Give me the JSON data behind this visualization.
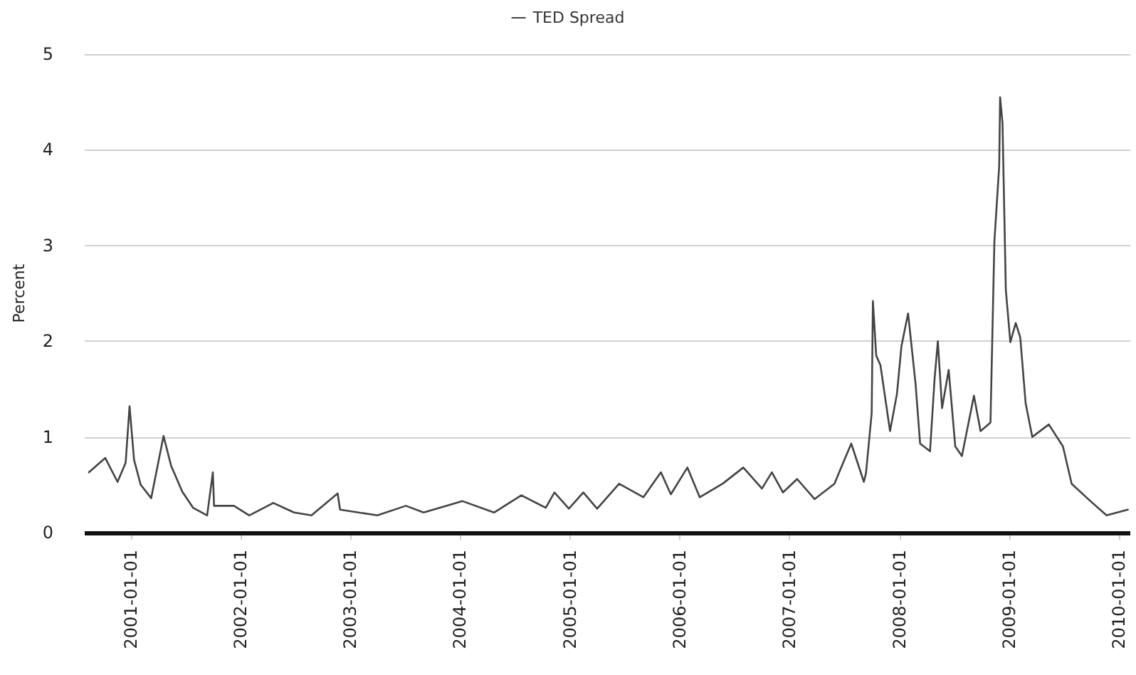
{
  "chart_data": {
    "type": "line",
    "ylabel": "Percent",
    "legend": "top",
    "grid": "y",
    "marker": "none",
    "line_style": "solid",
    "xlim": [
      "2000-08-01",
      "2010-02-07"
    ],
    "xticks": [
      "2001-01-01",
      "2002-01-01",
      "2003-01-01",
      "2004-01-01",
      "2005-01-01",
      "2006-01-01",
      "2007-01-01",
      "2008-01-01",
      "2009-01-01",
      "2010-01-01"
    ],
    "ylim": [
      0,
      5
    ],
    "yticks": [
      0,
      1,
      2,
      3,
      4,
      5
    ],
    "x": [
      "2000-08-15",
      "2000-10-08",
      "2000-11-18",
      "2000-12-15",
      "2000-12-28",
      "2001-01-12",
      "2001-02-03",
      "2001-03-10",
      "2001-04-20",
      "2001-05-15",
      "2001-06-21",
      "2001-07-27",
      "2001-09-12",
      "2001-10-01",
      "2001-10-05",
      "2001-12-10",
      "2002-01-30",
      "2002-04-20",
      "2002-06-28",
      "2002-08-25",
      "2002-11-20",
      "2002-11-28",
      "2003-04-01",
      "2003-07-05",
      "2003-09-02",
      "2003-12-20",
      "2004-01-08",
      "2004-04-23",
      "2004-07-23",
      "2004-10-12",
      "2004-11-10",
      "2004-12-28",
      "2005-02-14",
      "2005-04-01",
      "2005-06-13",
      "2005-09-02",
      "2005-10-30",
      "2005-12-02",
      "2006-01-26",
      "2006-03-08",
      "2006-05-23",
      "2006-07-31",
      "2006-10-01",
      "2006-11-03",
      "2006-12-10",
      "2007-01-26",
      "2007-03-25",
      "2007-05-30",
      "2007-06-28",
      "2007-07-25",
      "2007-09-05",
      "2007-09-12",
      "2007-10-01",
      "2007-10-05",
      "2007-10-16",
      "2007-10-30",
      "2007-12-01",
      "2007-12-24",
      "2008-01-08",
      "2008-01-30",
      "2008-02-24",
      "2008-03-10",
      "2008-04-12",
      "2008-04-27",
      "2008-05-08",
      "2008-05-22",
      "2008-06-13",
      "2008-07-05",
      "2008-07-27",
      "2008-09-05",
      "2008-09-27",
      "2008-10-30",
      "2008-11-12",
      "2008-11-28",
      "2008-12-01",
      "2008-12-09",
      "2008-12-20",
      "2009-01-04",
      "2009-01-22",
      "2009-02-06",
      "2009-02-24",
      "2009-03-18",
      "2009-05-12",
      "2009-06-28",
      "2009-07-27",
      "2009-09-27",
      "2009-11-20",
      "2010-01-30"
    ],
    "series": [
      {
        "name": "TED Spread",
        "color": "#444444",
        "values": [
          0.63,
          0.78,
          0.53,
          0.73,
          1.32,
          0.76,
          0.5,
          0.36,
          1.01,
          0.7,
          0.43,
          0.26,
          0.18,
          0.63,
          0.28,
          0.28,
          0.18,
          0.31,
          0.21,
          0.18,
          0.41,
          0.24,
          0.18,
          0.28,
          0.21,
          0.31,
          0.33,
          0.21,
          0.39,
          0.26,
          0.42,
          0.25,
          0.42,
          0.25,
          0.51,
          0.37,
          0.63,
          0.4,
          0.68,
          0.37,
          0.51,
          0.68,
          0.46,
          0.63,
          0.42,
          0.56,
          0.35,
          0.51,
          0.73,
          0.93,
          0.53,
          0.62,
          1.25,
          2.42,
          1.85,
          1.75,
          1.06,
          1.45,
          1.95,
          2.29,
          1.55,
          0.93,
          0.85,
          1.6,
          2.0,
          1.3,
          1.7,
          0.9,
          0.8,
          1.43,
          1.06,
          1.15,
          3.04,
          3.83,
          4.55,
          4.28,
          2.54,
          1.99,
          2.19,
          2.04,
          1.35,
          1.0,
          1.13,
          0.9,
          0.51,
          0.33,
          0.18,
          0.24
        ]
      }
    ]
  }
}
